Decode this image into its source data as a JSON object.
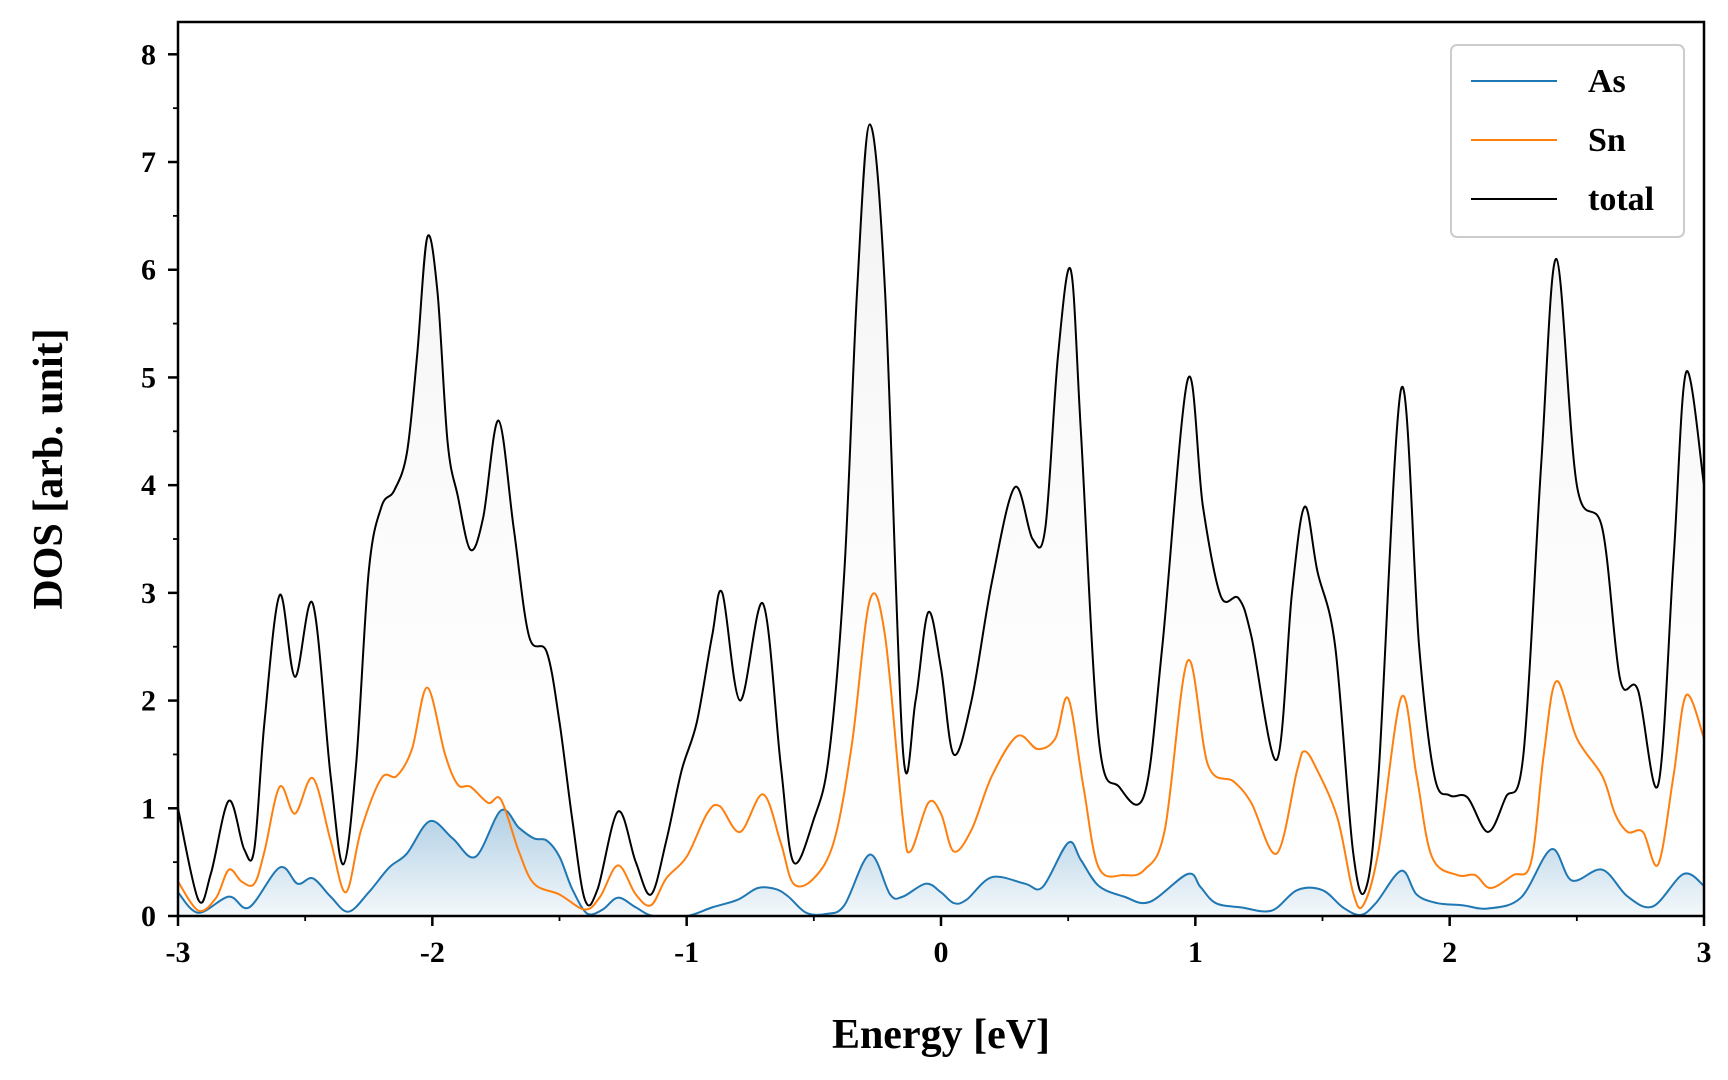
{
  "chart_data": {
    "type": "line",
    "xlabel": "Energy [eV]",
    "ylabel": "DOS [arb. unit]",
    "xlim": [
      -3,
      3
    ],
    "ylim": [
      0,
      8.3
    ],
    "x_ticks": [
      "-3",
      "-2",
      "-1",
      "0",
      "1",
      "2",
      "3"
    ],
    "x_tick_values": [
      -3,
      -2,
      -1,
      0,
      1,
      2,
      3
    ],
    "y_ticks": [
      "0",
      "1",
      "2",
      "3",
      "4",
      "5",
      "6",
      "7",
      "8"
    ],
    "y_tick_values": [
      0,
      1,
      2,
      3,
      4,
      5,
      6,
      7,
      8
    ],
    "legend_position": "top-right",
    "grid": false,
    "series": [
      {
        "name": "As",
        "color": "#1f77b4",
        "fill": "gradient",
        "points": [
          [
            -3.0,
            0.22
          ],
          [
            -2.92,
            0.03
          ],
          [
            -2.8,
            0.18
          ],
          [
            -2.72,
            0.08
          ],
          [
            -2.6,
            0.45
          ],
          [
            -2.53,
            0.3
          ],
          [
            -2.47,
            0.35
          ],
          [
            -2.4,
            0.18
          ],
          [
            -2.33,
            0.04
          ],
          [
            -2.25,
            0.22
          ],
          [
            -2.17,
            0.45
          ],
          [
            -2.1,
            0.58
          ],
          [
            -2.01,
            0.88
          ],
          [
            -1.92,
            0.72
          ],
          [
            -1.83,
            0.55
          ],
          [
            -1.73,
            0.98
          ],
          [
            -1.66,
            0.82
          ],
          [
            -1.6,
            0.72
          ],
          [
            -1.55,
            0.7
          ],
          [
            -1.5,
            0.55
          ],
          [
            -1.45,
            0.25
          ],
          [
            -1.39,
            0.02
          ],
          [
            -1.33,
            0.06
          ],
          [
            -1.27,
            0.17
          ],
          [
            -1.2,
            0.08
          ],
          [
            -1.13,
            0.0
          ],
          [
            -1.0,
            0.0
          ],
          [
            -0.9,
            0.08
          ],
          [
            -0.8,
            0.15
          ],
          [
            -0.72,
            0.26
          ],
          [
            -0.65,
            0.25
          ],
          [
            -0.6,
            0.18
          ],
          [
            -0.53,
            0.03
          ],
          [
            -0.45,
            0.02
          ],
          [
            -0.38,
            0.1
          ],
          [
            -0.28,
            0.57
          ],
          [
            -0.2,
            0.2
          ],
          [
            -0.15,
            0.18
          ],
          [
            -0.06,
            0.3
          ],
          [
            0.0,
            0.22
          ],
          [
            0.05,
            0.12
          ],
          [
            0.1,
            0.15
          ],
          [
            0.2,
            0.36
          ],
          [
            0.33,
            0.3
          ],
          [
            0.4,
            0.27
          ],
          [
            0.5,
            0.68
          ],
          [
            0.55,
            0.52
          ],
          [
            0.62,
            0.28
          ],
          [
            0.72,
            0.18
          ],
          [
            0.82,
            0.13
          ],
          [
            0.97,
            0.39
          ],
          [
            1.02,
            0.27
          ],
          [
            1.08,
            0.12
          ],
          [
            1.18,
            0.08
          ],
          [
            1.3,
            0.05
          ],
          [
            1.4,
            0.24
          ],
          [
            1.5,
            0.24
          ],
          [
            1.58,
            0.08
          ],
          [
            1.65,
            0.01
          ],
          [
            1.71,
            0.12
          ],
          [
            1.81,
            0.42
          ],
          [
            1.87,
            0.2
          ],
          [
            1.95,
            0.12
          ],
          [
            2.05,
            0.1
          ],
          [
            2.15,
            0.07
          ],
          [
            2.28,
            0.17
          ],
          [
            2.4,
            0.62
          ],
          [
            2.48,
            0.33
          ],
          [
            2.6,
            0.43
          ],
          [
            2.7,
            0.18
          ],
          [
            2.8,
            0.09
          ],
          [
            2.92,
            0.39
          ],
          [
            3.0,
            0.28
          ]
        ]
      },
      {
        "name": "Sn",
        "color": "#ff7f0e",
        "fill": "none",
        "points": [
          [
            -3.0,
            0.32
          ],
          [
            -2.92,
            0.05
          ],
          [
            -2.85,
            0.17
          ],
          [
            -2.8,
            0.43
          ],
          [
            -2.75,
            0.32
          ],
          [
            -2.7,
            0.3
          ],
          [
            -2.66,
            0.6
          ],
          [
            -2.6,
            1.2
          ],
          [
            -2.54,
            0.95
          ],
          [
            -2.47,
            1.28
          ],
          [
            -2.4,
            0.7
          ],
          [
            -2.34,
            0.22
          ],
          [
            -2.28,
            0.8
          ],
          [
            -2.2,
            1.28
          ],
          [
            -2.14,
            1.3
          ],
          [
            -2.08,
            1.55
          ],
          [
            -2.02,
            2.12
          ],
          [
            -1.95,
            1.5
          ],
          [
            -1.9,
            1.22
          ],
          [
            -1.85,
            1.2
          ],
          [
            -1.78,
            1.05
          ],
          [
            -1.73,
            1.08
          ],
          [
            -1.66,
            0.6
          ],
          [
            -1.6,
            0.3
          ],
          [
            -1.5,
            0.2
          ],
          [
            -1.4,
            0.06
          ],
          [
            -1.34,
            0.18
          ],
          [
            -1.27,
            0.47
          ],
          [
            -1.2,
            0.2
          ],
          [
            -1.14,
            0.1
          ],
          [
            -1.08,
            0.35
          ],
          [
            -1.0,
            0.55
          ],
          [
            -0.92,
            0.95
          ],
          [
            -0.87,
            1.02
          ],
          [
            -0.79,
            0.78
          ],
          [
            -0.7,
            1.13
          ],
          [
            -0.63,
            0.68
          ],
          [
            -0.58,
            0.3
          ],
          [
            -0.5,
            0.35
          ],
          [
            -0.42,
            0.7
          ],
          [
            -0.35,
            1.6
          ],
          [
            -0.28,
            2.93
          ],
          [
            -0.22,
            2.6
          ],
          [
            -0.15,
            0.9
          ],
          [
            -0.12,
            0.6
          ],
          [
            -0.05,
            1.05
          ],
          [
            0.0,
            0.95
          ],
          [
            0.05,
            0.6
          ],
          [
            0.12,
            0.8
          ],
          [
            0.2,
            1.3
          ],
          [
            0.3,
            1.67
          ],
          [
            0.38,
            1.55
          ],
          [
            0.45,
            1.65
          ],
          [
            0.5,
            2.02
          ],
          [
            0.56,
            1.2
          ],
          [
            0.62,
            0.45
          ],
          [
            0.72,
            0.38
          ],
          [
            0.8,
            0.43
          ],
          [
            0.88,
            0.8
          ],
          [
            0.97,
            2.37
          ],
          [
            1.05,
            1.4
          ],
          [
            1.15,
            1.25
          ],
          [
            1.22,
            1.05
          ],
          [
            1.32,
            0.58
          ],
          [
            1.4,
            1.35
          ],
          [
            1.43,
            1.53
          ],
          [
            1.48,
            1.35
          ],
          [
            1.56,
            0.9
          ],
          [
            1.62,
            0.22
          ],
          [
            1.66,
            0.1
          ],
          [
            1.72,
            0.6
          ],
          [
            1.81,
            2.03
          ],
          [
            1.87,
            1.3
          ],
          [
            1.93,
            0.55
          ],
          [
            2.03,
            0.38
          ],
          [
            2.1,
            0.38
          ],
          [
            2.16,
            0.26
          ],
          [
            2.25,
            0.38
          ],
          [
            2.32,
            0.5
          ],
          [
            2.37,
            1.5
          ],
          [
            2.42,
            2.18
          ],
          [
            2.5,
            1.65
          ],
          [
            2.6,
            1.3
          ],
          [
            2.65,
            0.95
          ],
          [
            2.7,
            0.78
          ],
          [
            2.76,
            0.78
          ],
          [
            2.82,
            0.48
          ],
          [
            2.88,
            1.3
          ],
          [
            2.93,
            2.05
          ],
          [
            3.0,
            1.65
          ]
        ]
      },
      {
        "name": "total",
        "color": "#000000",
        "fill": "gradient",
        "points": [
          [
            -3.0,
            1.0
          ],
          [
            -2.92,
            0.15
          ],
          [
            -2.87,
            0.4
          ],
          [
            -2.8,
            1.07
          ],
          [
            -2.74,
            0.62
          ],
          [
            -2.7,
            0.62
          ],
          [
            -2.66,
            1.8
          ],
          [
            -2.6,
            2.98
          ],
          [
            -2.54,
            2.22
          ],
          [
            -2.47,
            2.9
          ],
          [
            -2.4,
            1.3
          ],
          [
            -2.35,
            0.48
          ],
          [
            -2.3,
            1.4
          ],
          [
            -2.25,
            3.2
          ],
          [
            -2.2,
            3.8
          ],
          [
            -2.15,
            3.95
          ],
          [
            -2.1,
            4.3
          ],
          [
            -2.06,
            5.2
          ],
          [
            -2.02,
            6.3
          ],
          [
            -1.98,
            5.8
          ],
          [
            -1.94,
            4.4
          ],
          [
            -1.9,
            3.9
          ],
          [
            -1.85,
            3.4
          ],
          [
            -1.8,
            3.7
          ],
          [
            -1.74,
            4.6
          ],
          [
            -1.68,
            3.6
          ],
          [
            -1.62,
            2.6
          ],
          [
            -1.55,
            2.45
          ],
          [
            -1.5,
            1.8
          ],
          [
            -1.45,
            0.9
          ],
          [
            -1.4,
            0.15
          ],
          [
            -1.35,
            0.25
          ],
          [
            -1.27,
            0.97
          ],
          [
            -1.2,
            0.5
          ],
          [
            -1.14,
            0.2
          ],
          [
            -1.08,
            0.7
          ],
          [
            -1.02,
            1.35
          ],
          [
            -0.96,
            1.8
          ],
          [
            -0.9,
            2.6
          ],
          [
            -0.86,
            3.0
          ],
          [
            -0.79,
            2.0
          ],
          [
            -0.7,
            2.9
          ],
          [
            -0.63,
            1.4
          ],
          [
            -0.58,
            0.5
          ],
          [
            -0.5,
            0.9
          ],
          [
            -0.44,
            1.5
          ],
          [
            -0.38,
            3.2
          ],
          [
            -0.33,
            5.8
          ],
          [
            -0.28,
            7.35
          ],
          [
            -0.22,
            5.8
          ],
          [
            -0.15,
            1.55
          ],
          [
            -0.1,
            2.0
          ],
          [
            -0.05,
            2.82
          ],
          [
            0.0,
            2.3
          ],
          [
            0.05,
            1.5
          ],
          [
            0.12,
            2.0
          ],
          [
            0.2,
            3.1
          ],
          [
            0.29,
            3.98
          ],
          [
            0.36,
            3.5
          ],
          [
            0.41,
            3.6
          ],
          [
            0.46,
            5.2
          ],
          [
            0.51,
            6.0
          ],
          [
            0.55,
            4.5
          ],
          [
            0.62,
            1.65
          ],
          [
            0.7,
            1.2
          ],
          [
            0.8,
            1.13
          ],
          [
            0.87,
            2.5
          ],
          [
            0.97,
            4.98
          ],
          [
            1.03,
            3.8
          ],
          [
            1.1,
            2.97
          ],
          [
            1.17,
            2.95
          ],
          [
            1.22,
            2.6
          ],
          [
            1.32,
            1.45
          ],
          [
            1.38,
            3.0
          ],
          [
            1.43,
            3.8
          ],
          [
            1.48,
            3.2
          ],
          [
            1.55,
            2.5
          ],
          [
            1.62,
            0.6
          ],
          [
            1.67,
            0.25
          ],
          [
            1.72,
            1.3
          ],
          [
            1.81,
            4.9
          ],
          [
            1.88,
            2.5
          ],
          [
            1.94,
            1.3
          ],
          [
            2.0,
            1.12
          ],
          [
            2.07,
            1.1
          ],
          [
            2.15,
            0.78
          ],
          [
            2.22,
            1.1
          ],
          [
            2.29,
            1.5
          ],
          [
            2.36,
            4.2
          ],
          [
            2.42,
            6.1
          ],
          [
            2.5,
            4.0
          ],
          [
            2.6,
            3.6
          ],
          [
            2.67,
            2.2
          ],
          [
            2.74,
            2.1
          ],
          [
            2.82,
            1.22
          ],
          [
            2.88,
            3.3
          ],
          [
            2.93,
            5.05
          ],
          [
            3.0,
            4.0
          ]
        ]
      }
    ]
  }
}
